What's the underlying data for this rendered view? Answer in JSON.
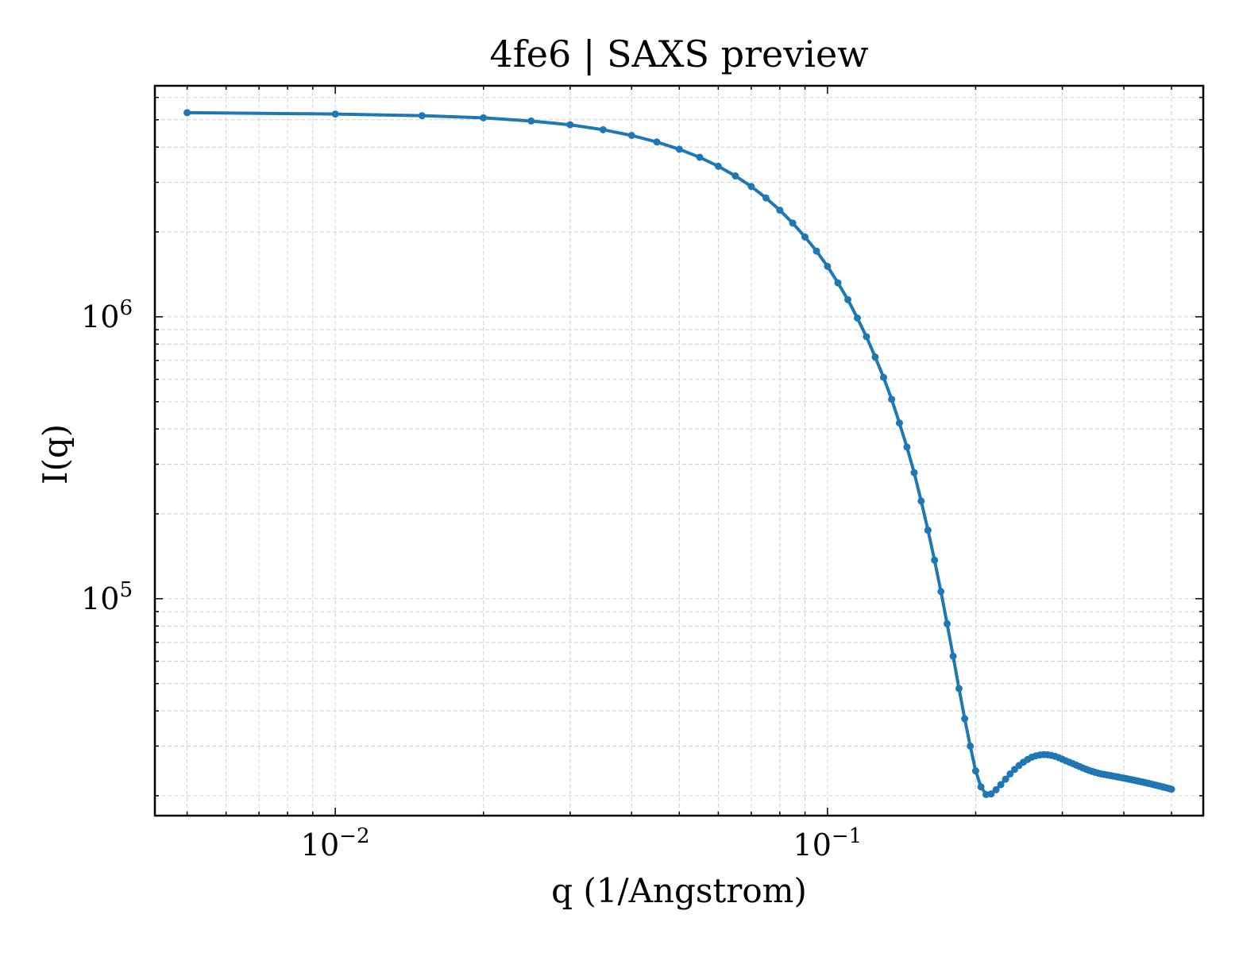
{
  "chart_data": {
    "type": "line",
    "title": "4fe6 | SAXS preview",
    "xlabel": "q (1/Angstrom)",
    "ylabel": "I(q)",
    "xscale": "log",
    "yscale": "log",
    "xlim": [
      0.0043,
      0.58
    ],
    "ylim": [
      17000,
      6600000
    ],
    "grid": true,
    "legend": "none",
    "color": "#1f77b4",
    "x_ticks": [
      {
        "value": 0.01,
        "base": "10",
        "exp": "−2"
      },
      {
        "value": 0.1,
        "base": "10",
        "exp": "−1"
      }
    ],
    "y_ticks": [
      {
        "value": 100000,
        "base": "10",
        "exp": "5"
      },
      {
        "value": 1000000,
        "base": "10",
        "exp": "6"
      }
    ],
    "series": [
      {
        "x": [
          0.005,
          0.01,
          0.015,
          0.02,
          0.025,
          0.03,
          0.035,
          0.04,
          0.045,
          0.05,
          0.055,
          0.06,
          0.065,
          0.07,
          0.075,
          0.08,
          0.085,
          0.09,
          0.095,
          0.1,
          0.105,
          0.11,
          0.115,
          0.12,
          0.125,
          0.13,
          0.135,
          0.14,
          0.145,
          0.15,
          0.155,
          0.16,
          0.165,
          0.17,
          0.175,
          0.18,
          0.185,
          0.19,
          0.195,
          0.2,
          0.205,
          0.21,
          0.215,
          0.22,
          0.225,
          0.23,
          0.235,
          0.24,
          0.245,
          0.25,
          0.255,
          0.26,
          0.265,
          0.27,
          0.275,
          0.28,
          0.285,
          0.29,
          0.295,
          0.3,
          0.305,
          0.31,
          0.315,
          0.32,
          0.325,
          0.33,
          0.335,
          0.34,
          0.345,
          0.35,
          0.355,
          0.36,
          0.365,
          0.37,
          0.375,
          0.38,
          0.385,
          0.39,
          0.395,
          0.4,
          0.405,
          0.41,
          0.415,
          0.42,
          0.425,
          0.43,
          0.435,
          0.44,
          0.445,
          0.45,
          0.455,
          0.46,
          0.465,
          0.47,
          0.475,
          0.48,
          0.485,
          0.49,
          0.495,
          0.5
        ],
        "y": [
          5300000,
          5240000,
          5170000,
          5080000,
          4950000,
          4800000,
          4610000,
          4400000,
          4170000,
          3930000,
          3680000,
          3420000,
          3160000,
          2900000,
          2640000,
          2390000,
          2150000,
          1920000,
          1710000,
          1510000,
          1320000,
          1150000,
          990000,
          850000,
          720000,
          610000,
          510000,
          420000,
          345000,
          280000,
          222000,
          175000,
          137000,
          106000,
          81500,
          62500,
          48000,
          37500,
          30000,
          24500,
          21500,
          20200,
          20300,
          21000,
          21900,
          22900,
          23900,
          24800,
          25600,
          26300,
          26900,
          27400,
          27700,
          27900,
          28000,
          27950,
          27800,
          27600,
          27300,
          26950,
          26600,
          26300,
          26000,
          25700,
          25400,
          25100,
          24850,
          24600,
          24400,
          24200,
          24050,
          23900,
          23800,
          23700,
          23600,
          23500,
          23400,
          23300,
          23200,
          23100,
          23000,
          22900,
          22800,
          22700,
          22600,
          22500,
          22400,
          22300,
          22200,
          22100,
          22000,
          21900,
          21800,
          21700,
          21600,
          21500,
          21400,
          21300,
          21200,
          21100
        ]
      }
    ]
  }
}
